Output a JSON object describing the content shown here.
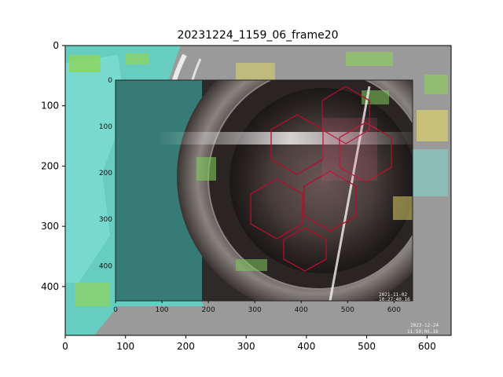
{
  "title": "20231224_1159_06_frame20",
  "axes": {
    "x_ticks": [
      "0",
      "100",
      "200",
      "300",
      "400",
      "500",
      "600"
    ],
    "y_ticks": [
      "0",
      "100",
      "200",
      "300",
      "400"
    ],
    "x_range": [
      0,
      640
    ],
    "y_range": [
      480,
      0
    ]
  },
  "inset": {
    "x_ticks": [
      "0",
      "100",
      "200",
      "300",
      "400",
      "500",
      "600"
    ],
    "y_ticks": [
      "0",
      "100",
      "200",
      "300",
      "400"
    ],
    "timestamp_line1": "2021-11-02",
    "timestamp_line2": "10:27:40.16"
  },
  "camera_stamp": {
    "date": "2023-12-24",
    "time": "11:59:06.16"
  },
  "colors": {
    "background_gray": "#9a9a9a",
    "overlay_cyan": "#5fd6c8",
    "overlay_green": "#8fd45a",
    "overlay_yellow": "#d8d06a",
    "hex_grid_red": "#b0102a",
    "inset_dark": "#2d2a28"
  }
}
